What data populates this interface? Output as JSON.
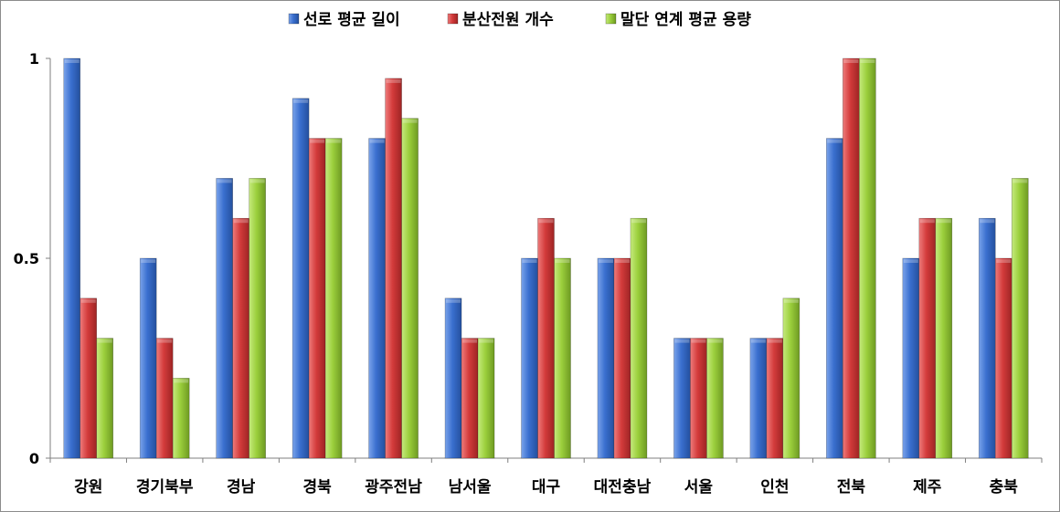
{
  "chart_data": {
    "type": "bar",
    "categories": [
      "강원",
      "경기북부",
      "경남",
      "경북",
      "광주전남",
      "남서울",
      "대구",
      "대전충남",
      "서울",
      "인천",
      "전북",
      "제주",
      "충북"
    ],
    "series": [
      {
        "name": "선로 평균 길이",
        "color": "#3a6fcf",
        "values": [
          1.0,
          0.5,
          0.7,
          0.9,
          0.8,
          0.4,
          0.5,
          0.5,
          0.3,
          0.3,
          0.8,
          0.5,
          0.6
        ]
      },
      {
        "name": "분산전원 개수",
        "color": "#d33b3b",
        "values": [
          0.4,
          0.3,
          0.6,
          0.8,
          0.95,
          0.3,
          0.6,
          0.5,
          0.3,
          0.3,
          1.0,
          0.6,
          0.5
        ]
      },
      {
        "name": "말단 연계 평균 용량",
        "color": "#9bcf3c",
        "values": [
          0.3,
          0.2,
          0.7,
          0.8,
          0.85,
          0.3,
          0.5,
          0.6,
          0.3,
          0.4,
          1.0,
          0.6,
          0.7
        ]
      }
    ],
    "yticks": [
      "0",
      "0.5",
      "1"
    ],
    "ytick_values": [
      0,
      0.5,
      1
    ],
    "ylim": [
      0,
      1
    ],
    "legend_position": "top",
    "grid": false
  }
}
